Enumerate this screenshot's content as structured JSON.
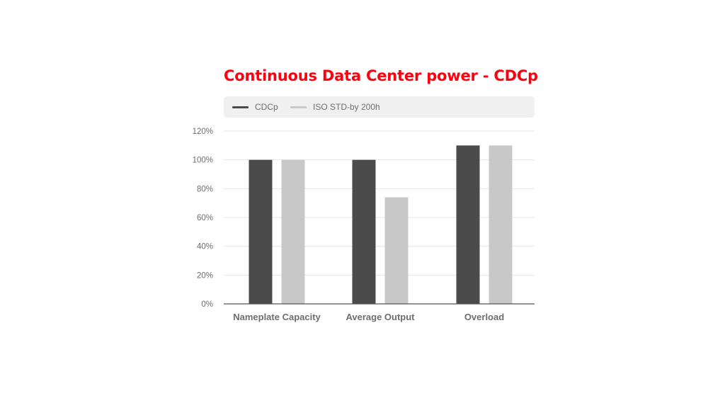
{
  "title": "Continuous Data Center power - CDCp",
  "colors": {
    "title": "#ff000f",
    "cdcp": "#4b4b4b",
    "iso": "#c8c8c8",
    "grid": "#e6e6e6",
    "axis": "#555555"
  },
  "legend": [
    {
      "label": "CDCp",
      "color": "#4b4b4b"
    },
    {
      "label": "ISO STD-by 200h",
      "color": "#c8c8c8"
    }
  ],
  "chart_data": {
    "type": "bar",
    "title": "Continuous Data Center power - CDCp",
    "categories": [
      "Nameplate Capacity",
      "Average Output",
      "Overload"
    ],
    "series": [
      {
        "name": "CDCp",
        "values": [
          100,
          100,
          110
        ]
      },
      {
        "name": "ISO STD-by 200h",
        "values": [
          100,
          74,
          110
        ]
      }
    ],
    "ylim": [
      0,
      120
    ],
    "yticks": [
      0,
      20,
      40,
      60,
      80,
      100,
      120
    ],
    "ytick_labels": [
      "0%",
      "20%",
      "40%",
      "60%",
      "80%",
      "100%",
      "120%"
    ],
    "grid": true,
    "legend_position": "top"
  }
}
